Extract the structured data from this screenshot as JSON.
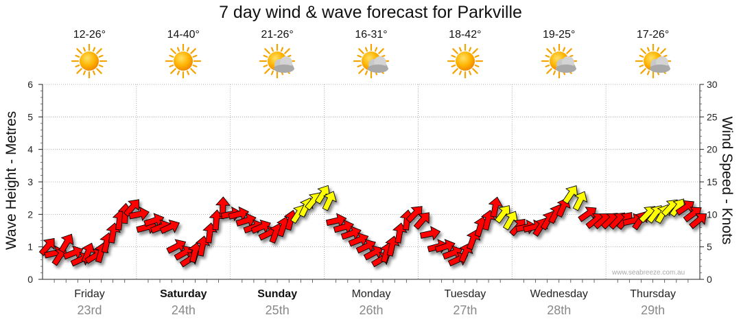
{
  "title": "7 day wind & wave forecast for Parkville",
  "watermark": "www.seabreeze.com.au",
  "days": [
    {
      "name": "Friday",
      "date": "23rd",
      "temp": "12-26°",
      "icon": "sun-icon",
      "bold": false
    },
    {
      "name": "Saturday",
      "date": "24th",
      "temp": "14-40°",
      "icon": "sun-icon",
      "bold": true
    },
    {
      "name": "Sunday",
      "date": "25th",
      "temp": "21-26°",
      "icon": "sun-cloud-icon",
      "bold": true
    },
    {
      "name": "Monday",
      "date": "26th",
      "temp": "16-31°",
      "icon": "sun-cloud-icon",
      "bold": false
    },
    {
      "name": "Tuesday",
      "date": "27th",
      "temp": "18-42°",
      "icon": "sun-icon",
      "bold": false
    },
    {
      "name": "Wednesday",
      "date": "28th",
      "temp": "19-25°",
      "icon": "sun-cloud-icon",
      "bold": false
    },
    {
      "name": "Thursday",
      "date": "29th",
      "temp": "17-26°",
      "icon": "sun-cloud-icon",
      "bold": false
    }
  ],
  "colors": {
    "strong": "#ff0000",
    "light": "#ffff00",
    "grid": "#999999"
  },
  "chart_data": {
    "type": "scatter",
    "left_axis": {
      "label": "Wave Height - Metres",
      "range": [
        0,
        6
      ],
      "ticks": [
        "0",
        "1",
        "2",
        "3",
        "4",
        "5",
        "6"
      ]
    },
    "right_axis": {
      "label": "Wind Speed - Knots",
      "range": [
        0,
        30
      ],
      "ticks": [
        "0",
        "5",
        "10",
        "15",
        "20",
        "25",
        "30"
      ]
    },
    "grid": true,
    "x_unit": "day offset from Friday 00:00",
    "series": [
      {
        "values_knots": [
          [
            0.05,
            5
          ],
          [
            0.12,
            4
          ],
          [
            0.18,
            3.5
          ],
          [
            0.25,
            5.5
          ],
          [
            0.32,
            4
          ],
          [
            0.4,
            3
          ],
          [
            0.48,
            4
          ],
          [
            0.55,
            3.5
          ],
          [
            0.62,
            4
          ],
          [
            0.68,
            5.5
          ],
          [
            0.75,
            7
          ],
          [
            0.82,
            9
          ],
          [
            0.88,
            10
          ],
          [
            0.95,
            11
          ],
          [
            1.02,
            10
          ],
          [
            1.1,
            8
          ],
          [
            1.18,
            9
          ],
          [
            1.25,
            8
          ],
          [
            1.35,
            8
          ],
          [
            1.42,
            5
          ],
          [
            1.5,
            4
          ],
          [
            1.56,
            3
          ],
          [
            1.62,
            4
          ],
          [
            1.7,
            5
          ],
          [
            1.78,
            7
          ],
          [
            1.85,
            9
          ],
          [
            1.92,
            11
          ],
          [
            2.0,
            10
          ],
          [
            2.08,
            10
          ],
          [
            2.16,
            9
          ],
          [
            2.24,
            8
          ],
          [
            2.32,
            8
          ],
          [
            2.4,
            7
          ],
          [
            2.48,
            7
          ],
          [
            2.56,
            8
          ],
          [
            2.64,
            9
          ],
          [
            2.72,
            10
          ],
          [
            2.8,
            11
          ],
          [
            2.88,
            12
          ],
          [
            2.98,
            13
          ],
          [
            3.05,
            12
          ],
          [
            3.12,
            9
          ],
          [
            3.2,
            8
          ],
          [
            3.28,
            7
          ],
          [
            3.36,
            6
          ],
          [
            3.44,
            5
          ],
          [
            3.52,
            4
          ],
          [
            3.6,
            3
          ],
          [
            3.66,
            4
          ],
          [
            3.72,
            5
          ],
          [
            3.8,
            7
          ],
          [
            3.88,
            9
          ],
          [
            3.96,
            10
          ],
          [
            4.04,
            9
          ],
          [
            4.12,
            7
          ],
          [
            4.2,
            5
          ],
          [
            4.28,
            5
          ],
          [
            4.36,
            4
          ],
          [
            4.42,
            3
          ],
          [
            4.5,
            4
          ],
          [
            4.58,
            6
          ],
          [
            4.66,
            8
          ],
          [
            4.74,
            9
          ],
          [
            4.82,
            11
          ],
          [
            4.9,
            10
          ],
          [
            4.98,
            9
          ],
          [
            5.06,
            8
          ],
          [
            5.14,
            8
          ],
          [
            5.22,
            8
          ],
          [
            5.3,
            8
          ],
          [
            5.38,
            9
          ],
          [
            5.46,
            10
          ],
          [
            5.54,
            11
          ],
          [
            5.62,
            13
          ],
          [
            5.72,
            12
          ],
          [
            5.8,
            10
          ],
          [
            5.88,
            9
          ],
          [
            5.96,
            9
          ],
          [
            6.04,
            9
          ],
          [
            6.12,
            9
          ],
          [
            6.2,
            9
          ],
          [
            6.28,
            9
          ],
          [
            6.36,
            9
          ],
          [
            6.44,
            10
          ],
          [
            6.52,
            10
          ],
          [
            6.6,
            10
          ],
          [
            6.68,
            11
          ],
          [
            6.76,
            11
          ],
          [
            6.84,
            11
          ],
          [
            6.92,
            10
          ],
          [
            6.98,
            9
          ]
        ],
        "light_wind_segments": [
          [
            2.72,
            3.05
          ],
          [
            4.88,
            5.04
          ],
          [
            5.55,
            5.75
          ],
          [
            6.42,
            6.82
          ]
        ]
      }
    ]
  }
}
